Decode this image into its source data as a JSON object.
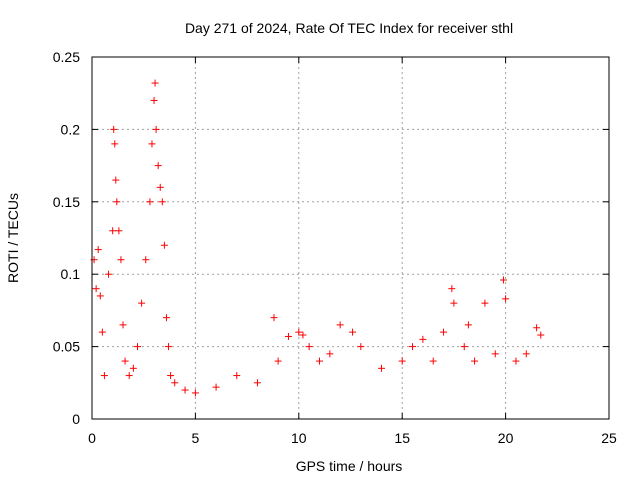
{
  "chart_data": {
    "type": "scatter",
    "title": "Day 271 of 2024, Rate Of TEC Index for receiver sthl",
    "xlabel": "GPS time / hours",
    "ylabel": "ROTI / TECUs",
    "xlim": [
      0,
      25
    ],
    "ylim": [
      0,
      0.25
    ],
    "xticks": [
      0,
      5,
      10,
      15,
      20,
      25
    ],
    "xtick_labels": [
      "0",
      "5",
      "10",
      "15",
      "20",
      "25"
    ],
    "yticks": [
      0,
      0.05,
      0.1,
      0.15,
      0.2,
      0.25
    ],
    "ytick_labels": [
      "0",
      "0.05",
      "0.1",
      "0.15",
      "0.2",
      "0.25"
    ],
    "grid": true,
    "marker": "+",
    "color": "#ff0000",
    "series": [
      {
        "name": "ROTI",
        "x": [
          0.1,
          0.2,
          0.3,
          0.4,
          0.5,
          0.6,
          0.8,
          1.0,
          1.05,
          1.1,
          1.15,
          1.2,
          1.3,
          1.4,
          1.5,
          1.6,
          1.8,
          2.0,
          2.2,
          2.4,
          2.6,
          2.8,
          2.9,
          3.0,
          3.05,
          3.1,
          3.2,
          3.3,
          3.4,
          3.5,
          3.6,
          3.7,
          3.8,
          4.0,
          4.5,
          5.0,
          6.0,
          7.0,
          8.0,
          8.8,
          9.0,
          9.5,
          10.0,
          10.2,
          10.5,
          11.0,
          11.5,
          12.0,
          12.6,
          13.0,
          14.0,
          15.0,
          15.5,
          16.0,
          16.5,
          17.0,
          17.4,
          17.5,
          18.0,
          18.2,
          18.5,
          19.0,
          19.5,
          19.9,
          20.0,
          20.5,
          21.0,
          21.5,
          21.7
        ],
        "y": [
          0.11,
          0.09,
          0.117,
          0.085,
          0.06,
          0.03,
          0.1,
          0.13,
          0.2,
          0.19,
          0.165,
          0.15,
          0.13,
          0.11,
          0.065,
          0.04,
          0.03,
          0.035,
          0.05,
          0.08,
          0.11,
          0.15,
          0.19,
          0.22,
          0.232,
          0.2,
          0.175,
          0.16,
          0.15,
          0.12,
          0.07,
          0.05,
          0.03,
          0.025,
          0.02,
          0.018,
          0.022,
          0.03,
          0.025,
          0.07,
          0.04,
          0.057,
          0.06,
          0.058,
          0.05,
          0.04,
          0.045,
          0.065,
          0.06,
          0.05,
          0.035,
          0.04,
          0.05,
          0.055,
          0.04,
          0.06,
          0.09,
          0.08,
          0.05,
          0.065,
          0.04,
          0.08,
          0.045,
          0.096,
          0.083,
          0.04,
          0.045,
          0.063,
          0.058
        ]
      }
    ]
  }
}
